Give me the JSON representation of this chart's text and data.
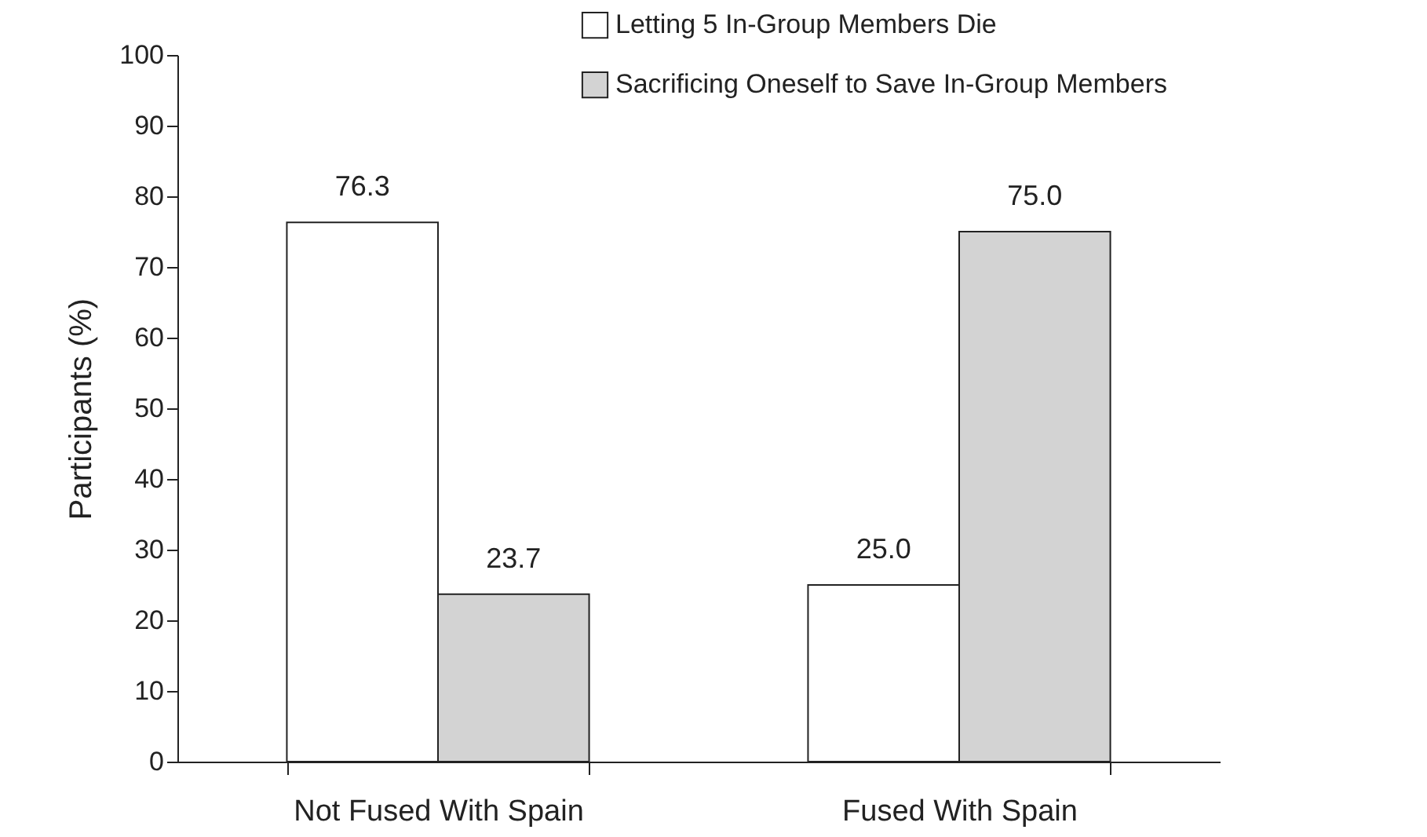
{
  "chart_data": {
    "type": "bar",
    "ylabel": "Participants (%)",
    "categories": [
      "Not Fused With Spain",
      "Fused With Spain"
    ],
    "series": [
      {
        "name": "Letting 5 In-Group Members Die",
        "color": "#ffffff",
        "values": [
          76.3,
          25.0
        ],
        "value_labels": [
          "76.3",
          "25.0"
        ]
      },
      {
        "name": "Sacrificing Oneself to Save In-Group Members",
        "color": "#d3d3d3",
        "values": [
          23.7,
          75.0
        ],
        "value_labels": [
          "23.7",
          "75.0"
        ]
      }
    ],
    "ylim": [
      0,
      100
    ],
    "yticks": [
      0,
      10,
      20,
      30,
      40,
      50,
      60,
      70,
      80,
      90,
      100
    ],
    "grid": false,
    "legend": "top right"
  }
}
